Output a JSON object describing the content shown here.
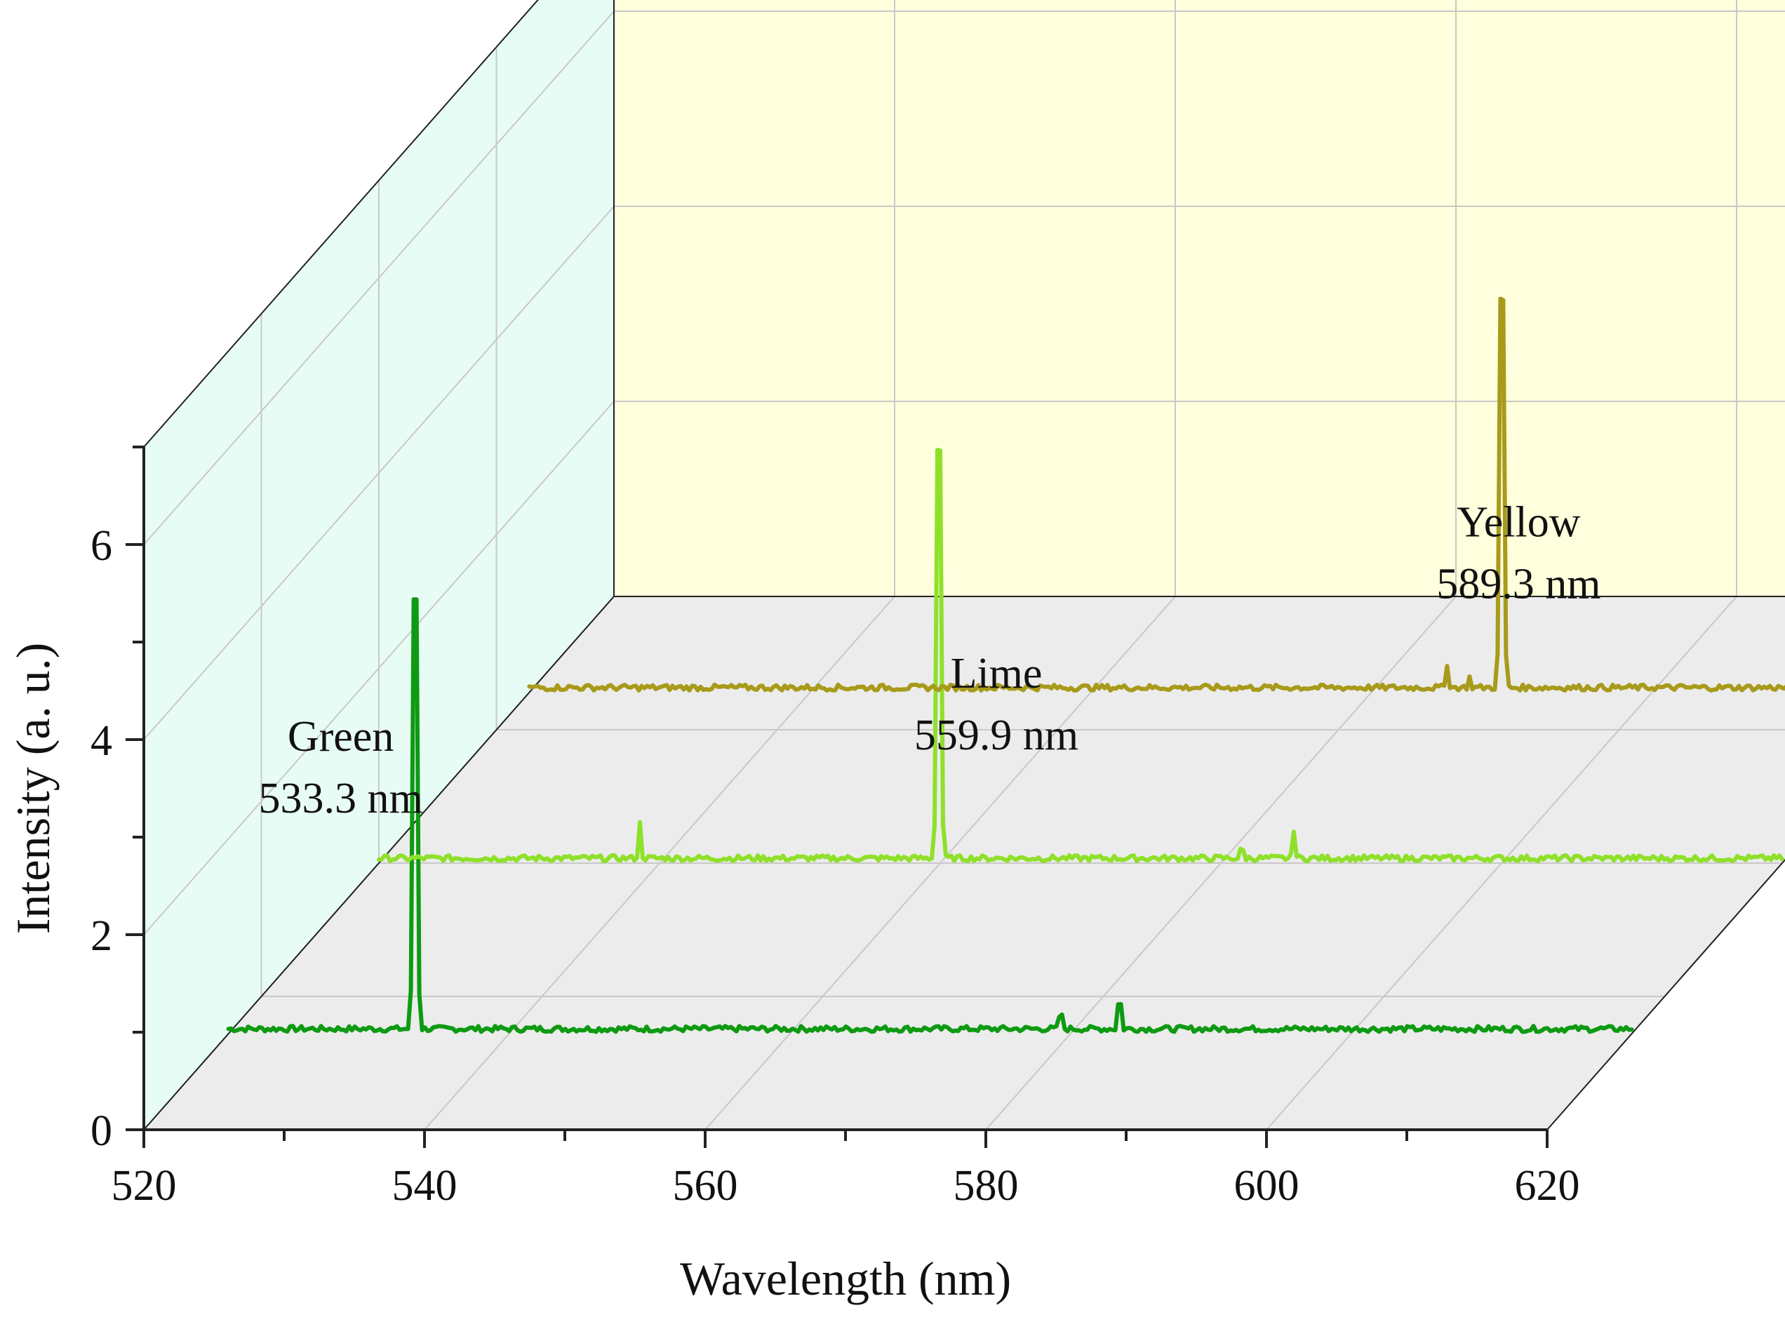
{
  "chart_data": {
    "type": "line",
    "subtype": "3d-waterfall",
    "title": "",
    "xlabel": "Wavelength (nm)",
    "ylabel": "Intensity (a. u.)",
    "xlim": [
      520,
      620
    ],
    "ylim": [
      0,
      7
    ],
    "xticks": [
      520,
      540,
      560,
      580,
      600,
      620
    ],
    "yticks": [
      0,
      2,
      4,
      6
    ],
    "grid": true,
    "colors": {
      "back_wall": "#ffffdd",
      "side_wall": "#e8fcf6",
      "floor": "#ececec",
      "grid": "#c8c8c8",
      "axis": "#222222"
    },
    "series": [
      {
        "color": "#0e9a12",
        "baseline": 0.0,
        "peak_x": 533.3,
        "peak_height": 6.0,
        "minor_peaks": [
          {
            "x": 579.3,
            "height": 0.25
          },
          {
            "x": 583.5,
            "height": 0.5
          }
        ],
        "label_line1": "Green",
        "label_line2": "533.3 nm",
        "label_x": 528,
        "label_y": 2.9
      },
      {
        "color": "#8fe02a",
        "baseline": 0.0,
        "peak_x": 559.9,
        "peak_height": 5.7,
        "minor_peaks": [
          {
            "x": 538.6,
            "height": 0.35
          },
          {
            "x": 581.5,
            "height": 0.15
          },
          {
            "x": 585.2,
            "height": 0.3
          }
        ],
        "label_line1": "Lime",
        "label_line2": "559.9 nm",
        "label_x": 564,
        "label_y": 1.8
      },
      {
        "color": "#a89a1a",
        "baseline": 0.0,
        "peak_x": 589.3,
        "peak_height": 5.4,
        "minor_peaks": [
          {
            "x": 585.4,
            "height": 0.25
          },
          {
            "x": 587.0,
            "height": 0.1
          }
        ],
        "label_line1": "Yellow",
        "label_line2": "589.3 nm",
        "label_x": 590.5,
        "label_y": 1.6
      }
    ]
  }
}
